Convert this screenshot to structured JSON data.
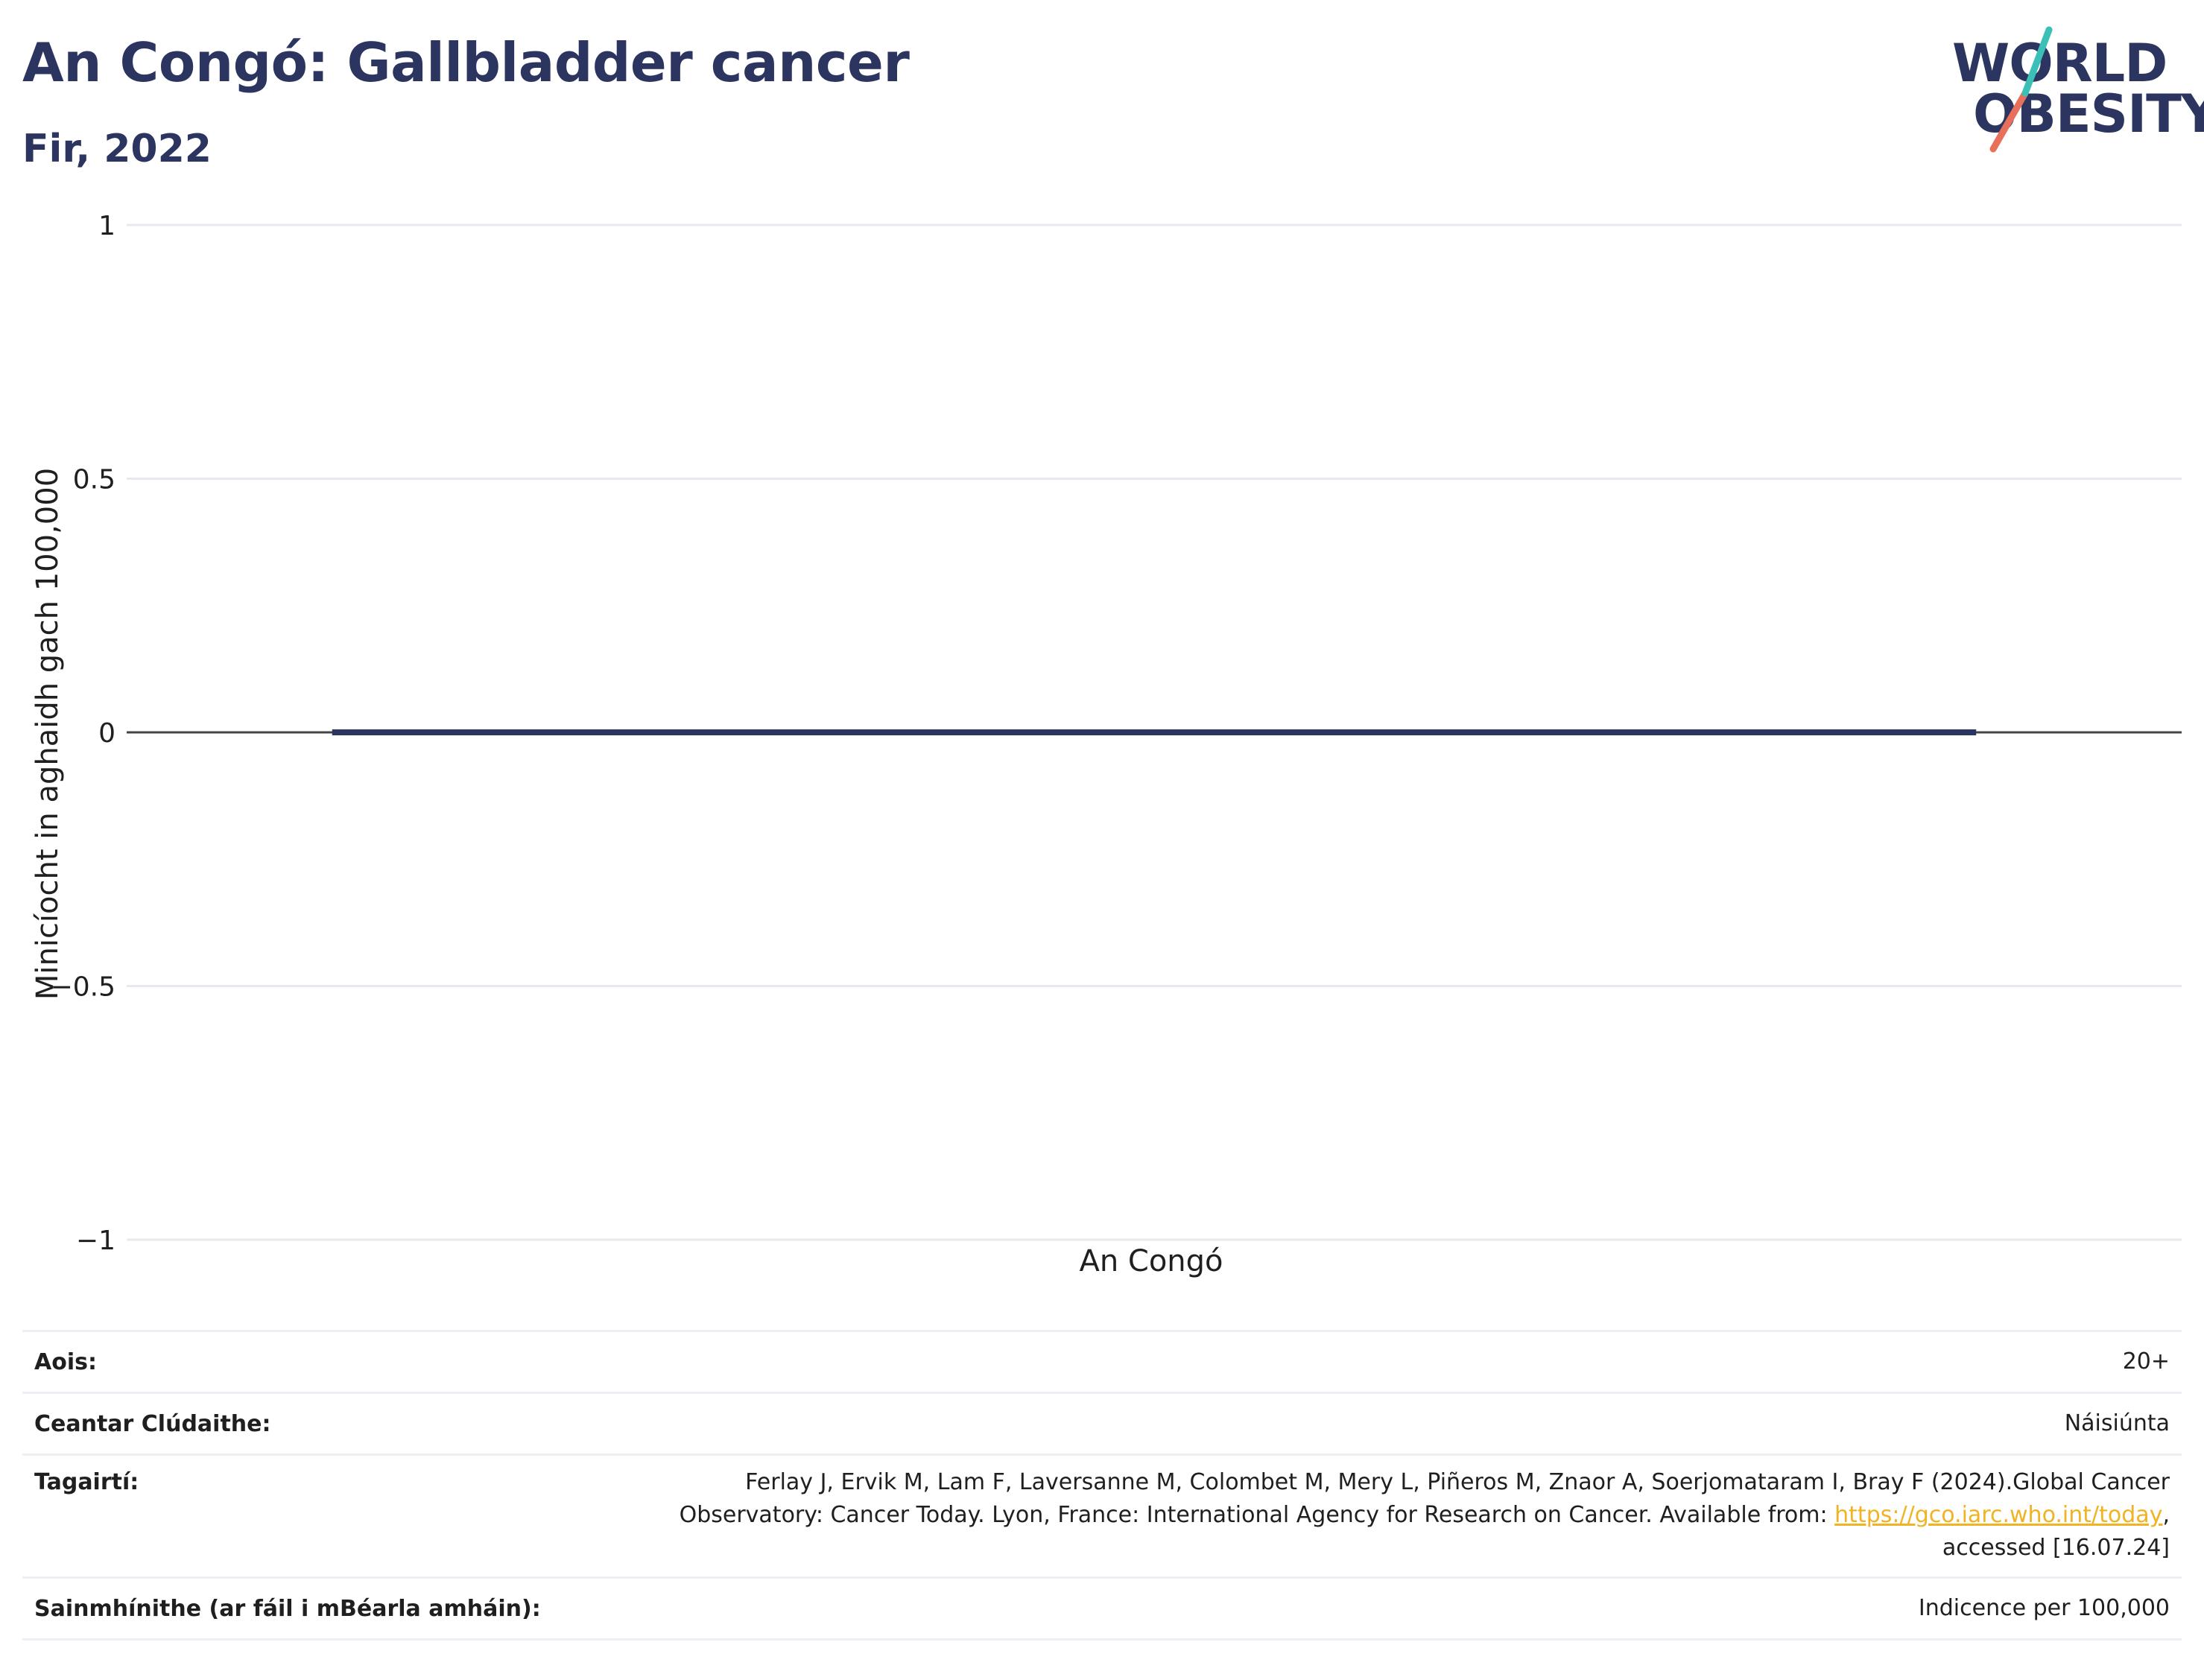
{
  "header": {
    "title": "An Congó: Gallbladder cancer",
    "subtitle": "Fir, 2022"
  },
  "logo": {
    "line1": "WORLD",
    "line2": "OBESITY",
    "colors": {
      "navy": "#2c3560",
      "teal": "#3bbfb6",
      "coral": "#e8705a"
    }
  },
  "chart_data": {
    "type": "bar",
    "categories": [
      "An Congó"
    ],
    "values": [
      0
    ],
    "ylabel": "Minicíocht in aghaidh gach 100,000",
    "ylim": [
      -1,
      1
    ],
    "yticks": [
      1,
      0.5,
      0,
      -0.5,
      -1
    ],
    "ytick_labels": [
      "1",
      "0.5",
      "0",
      "−0.5",
      "−1"
    ],
    "grid": true,
    "bar_color": "#2c3560"
  },
  "info": {
    "age_label": "Aois:",
    "age_value": "20+",
    "area_label": "Ceantar Clúdaithe:",
    "area_value": "Náisiúnta",
    "refs_label": "Tagairtí:",
    "refs_line1": "Ferlay J, Ervik M, Lam F, Laversanne M, Colombet M, Mery L, Piñeros M, Znaor A, Soerjomataram I, Bray F (2024).Global Cancer",
    "refs_line2_pre": "Observatory: Cancer Today. Lyon, France: International Agency for Research on Cancer. Available from: ",
    "refs_link": "https://gco.iarc.who.int/today",
    "refs_line2_post": ",",
    "refs_line3": "accessed [16.07.24]",
    "def_label": "Sainmhínithe (ar fáil i mBéarla amháin):",
    "def_value": "Indicence per 100,000"
  }
}
